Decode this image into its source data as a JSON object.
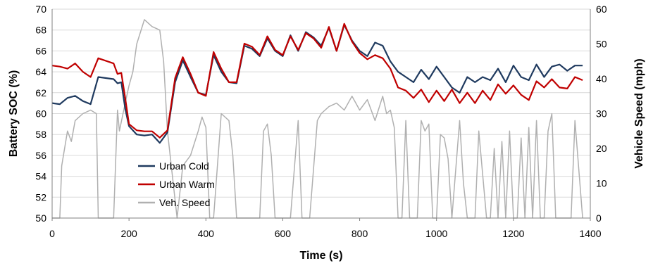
{
  "chart_data": {
    "type": "line",
    "xlabel": "Time (s)",
    "ylabel": "Battery SOC (%)",
    "y2label": "Vehicle Speed (mph)",
    "xlim": [
      0,
      1400
    ],
    "ylim": [
      50,
      70
    ],
    "y2lim": [
      0,
      60
    ],
    "x_ticks": [
      "0",
      "200",
      "400",
      "600",
      "800",
      "1000",
      "1200",
      "1400"
    ],
    "y_ticks": [
      "50",
      "52",
      "54",
      "56",
      "58",
      "60",
      "62",
      "64",
      "66",
      "68",
      "70"
    ],
    "y2_ticks": [
      "0",
      "10",
      "20",
      "30",
      "40",
      "50",
      "60"
    ],
    "grid": "horizontal major gridlines",
    "legend_position": "center-left",
    "series": [
      {
        "name": "Urban Cold",
        "axis": "left",
        "color": "#1f3a5f",
        "x": [
          0,
          20,
          40,
          60,
          80,
          100,
          120,
          160,
          170,
          180,
          190,
          200,
          220,
          240,
          260,
          280,
          300,
          320,
          340,
          360,
          380,
          400,
          420,
          440,
          460,
          480,
          500,
          520,
          540,
          560,
          580,
          600,
          620,
          640,
          660,
          680,
          700,
          720,
          740,
          760,
          780,
          800,
          820,
          840,
          860,
          880,
          900,
          920,
          940,
          960,
          980,
          1000,
          1020,
          1040,
          1060,
          1080,
          1100,
          1120,
          1140,
          1160,
          1180,
          1200,
          1220,
          1240,
          1260,
          1280,
          1300,
          1320,
          1340,
          1360,
          1380
        ],
        "values": [
          61.0,
          60.9,
          61.5,
          61.7,
          61.2,
          60.9,
          63.5,
          63.3,
          62.9,
          63.0,
          60.5,
          58.8,
          58.0,
          57.9,
          58.0,
          57.2,
          58.2,
          63.0,
          65.1,
          63.5,
          62.0,
          61.8,
          65.6,
          64.0,
          63.0,
          62.9,
          66.5,
          66.2,
          65.5,
          67.2,
          66.0,
          65.5,
          67.5,
          66.0,
          67.8,
          67.3,
          66.5,
          68.2,
          66.0,
          68.5,
          67.0,
          66.0,
          65.5,
          66.8,
          66.5,
          65.0,
          64.0,
          63.5,
          63.0,
          64.2,
          63.3,
          64.5,
          63.5,
          62.5,
          62.0,
          63.5,
          63.0,
          63.5,
          63.2,
          64.3,
          63.0,
          64.6,
          63.5,
          63.2,
          64.7,
          63.5,
          64.5,
          64.7,
          64.1,
          64.6,
          64.6
        ]
      },
      {
        "name": "Urban Warm",
        "axis": "left",
        "color": "#c00000",
        "x": [
          0,
          20,
          40,
          60,
          80,
          100,
          120,
          160,
          170,
          180,
          190,
          200,
          220,
          240,
          260,
          280,
          300,
          320,
          340,
          360,
          380,
          400,
          420,
          440,
          460,
          480,
          500,
          520,
          540,
          560,
          580,
          600,
          620,
          640,
          660,
          680,
          700,
          720,
          740,
          760,
          780,
          800,
          820,
          840,
          860,
          880,
          900,
          920,
          940,
          960,
          980,
          1000,
          1020,
          1040,
          1060,
          1080,
          1100,
          1120,
          1140,
          1160,
          1180,
          1200,
          1220,
          1240,
          1260,
          1280,
          1300,
          1320,
          1340,
          1360,
          1380
        ],
        "values": [
          64.6,
          64.5,
          64.3,
          64.8,
          64.0,
          63.5,
          65.3,
          64.8,
          63.8,
          63.9,
          61.5,
          59.0,
          58.4,
          58.3,
          58.3,
          57.7,
          58.4,
          63.4,
          65.4,
          63.8,
          62.0,
          61.7,
          65.9,
          64.3,
          63.0,
          63.0,
          66.7,
          66.4,
          65.6,
          67.4,
          66.1,
          65.6,
          67.4,
          66.1,
          67.7,
          67.2,
          66.3,
          68.3,
          66.0,
          68.6,
          66.9,
          65.8,
          65.2,
          65.6,
          65.3,
          64.3,
          62.5,
          62.2,
          61.5,
          62.3,
          61.1,
          62.2,
          61.2,
          62.3,
          61.0,
          62.0,
          61.0,
          62.2,
          61.3,
          62.8,
          61.9,
          62.7,
          61.8,
          61.3,
          63.1,
          62.5,
          63.3,
          62.5,
          62.4,
          63.5,
          63.2
        ]
      },
      {
        "name": "Veh. Speed",
        "axis": "right",
        "color": "#b0b0b0",
        "x": [
          0,
          20,
          25,
          40,
          50,
          60,
          80,
          100,
          115,
          120,
          125,
          160,
          170,
          175,
          190,
          200,
          210,
          220,
          240,
          260,
          280,
          290,
          300,
          315,
          325,
          340,
          360,
          380,
          390,
          400,
          410,
          420,
          440,
          460,
          470,
          480,
          490,
          500,
          510,
          520,
          530,
          540,
          550,
          560,
          570,
          580,
          600,
          620,
          640,
          650,
          670,
          690,
          700,
          720,
          740,
          760,
          780,
          800,
          820,
          840,
          860,
          870,
          880,
          890,
          900,
          910,
          920,
          930,
          950,
          960,
          970,
          980,
          990,
          1000,
          1010,
          1020,
          1030,
          1040,
          1060,
          1070,
          1080,
          1100,
          1110,
          1130,
          1140,
          1150,
          1160,
          1170,
          1180,
          1190,
          1200,
          1210,
          1220,
          1230,
          1240,
          1250,
          1260,
          1270,
          1280,
          1290,
          1300,
          1310,
          1320,
          1330,
          1340,
          1350,
          1360,
          1380
        ],
        "values": [
          0,
          0,
          15,
          25,
          22,
          28,
          30,
          31,
          30,
          0,
          0,
          0,
          31,
          25,
          33,
          38,
          42,
          50,
          57,
          55,
          54,
          45,
          25,
          10,
          0,
          15,
          18,
          25,
          29,
          26,
          0,
          0,
          30,
          28,
          18,
          0,
          0,
          0,
          0,
          0,
          0,
          0,
          25,
          27,
          18,
          0,
          0,
          0,
          28,
          0,
          0,
          28,
          30,
          32,
          33,
          31,
          35,
          31,
          34,
          28,
          35,
          30,
          31,
          26,
          0,
          0,
          28,
          0,
          0,
          28,
          25,
          27,
          0,
          0,
          24,
          23,
          17,
          0,
          28,
          10,
          0,
          0,
          25,
          0,
          0,
          20,
          0,
          22,
          0,
          25,
          0,
          0,
          23,
          0,
          26,
          0,
          28,
          0,
          0,
          25,
          30,
          0,
          0,
          0,
          0,
          0,
          28,
          0
        ]
      }
    ]
  }
}
